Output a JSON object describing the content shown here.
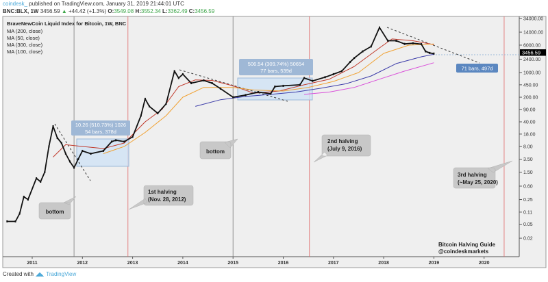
{
  "header": {
    "publisher": "coindesk_",
    "published_text": "published on TradingView.com, January 31, 2019 21:44:01 UTC",
    "symbol": "BNC:BLX, 1W",
    "last": "3456.59",
    "change": "+44.42 (+1.3%)",
    "o_label": "O:",
    "o": "3549.08",
    "h_label": "H:",
    "h": "3552.34",
    "l_label": "L:",
    "l": "3362.49",
    "c_label": "C:",
    "c": "3456.59",
    "up_color": "#3ea64a"
  },
  "legend": {
    "title": "BraveNewCoin Liquid Index for Bitcoin, 1W, BNC",
    "items": [
      "MA (200, close)",
      "MA (50, close)",
      "MA (300, close)",
      "MA (100, close)"
    ]
  },
  "annotations": {
    "measure1": {
      "line1": "10.26 (510.73%) 1026",
      "line2": "54 bars, 378d"
    },
    "measure2": {
      "line1": "506.54 (309.74%) 50654",
      "line2": "77 bars, 539d"
    },
    "measure3": {
      "line1": "71 bars, 497d"
    },
    "bottom1": "bottom",
    "bottom2": "bottom",
    "halving1": {
      "line1": "1st halving",
      "line2": "(Nov. 28, 2012)"
    },
    "halving2": {
      "line1": "2nd halving",
      "line2": "(July 9, 2016)"
    },
    "halving3": {
      "line1": "3rd halving",
      "line2": "(~May 25, 2020)"
    },
    "credit": {
      "line1": "Bitcoin Halving Guide",
      "line2": "@coindeskmarkets"
    }
  },
  "footer": {
    "created_with": "Created with",
    "brand": "TradingView"
  },
  "chart_data": {
    "type": "line",
    "title": "BraveNewCoin Liquid Index for Bitcoin, 1W, BNC",
    "y_scale": "log",
    "ylim": [
      0.01,
      34000
    ],
    "xlim": [
      "2010-07",
      "2020-08"
    ],
    "grid": false,
    "legend_position": "top-left",
    "last_price_label": "3456.59",
    "y_ticks": [
      "34000.00",
      "14000.00",
      "6000.00",
      "2400.00",
      "1000.00",
      "450.00",
      "200.00",
      "90.00",
      "40.00",
      "18.00",
      "8.00",
      "3.50",
      "1.50",
      "0.60",
      "0.25",
      "0.11",
      "0.05",
      "0.02"
    ],
    "x_ticks": [
      "2011",
      "2012",
      "2013",
      "2014",
      "2015",
      "2016",
      "2017",
      "2018",
      "2019",
      "2020"
    ],
    "vertical_lines": [
      {
        "date": "2011-11",
        "kind": "bottom",
        "color": "#787878"
      },
      {
        "date": "2012-11-28",
        "kind": "halving",
        "color": "#e06666"
      },
      {
        "date": "2015-01",
        "kind": "bottom",
        "color": "#787878"
      },
      {
        "date": "2016-07-09",
        "kind": "halving",
        "color": "#e06666"
      },
      {
        "date": "2020-05-25",
        "kind": "halving",
        "color": "#e06666"
      }
    ],
    "series": [
      {
        "name": "BraveNewCoin Liquid Index for Bitcoin",
        "color": "#111111",
        "points": [
          [
            "2010-07",
            0.06
          ],
          [
            "2010-09",
            0.06
          ],
          [
            "2010-10",
            0.1
          ],
          [
            "2010-11",
            0.3
          ],
          [
            "2010-12",
            0.25
          ],
          [
            "2011-02",
            1.0
          ],
          [
            "2011-03",
            0.8
          ],
          [
            "2011-04",
            1.5
          ],
          [
            "2011-05",
            8
          ],
          [
            "2011-06",
            30
          ],
          [
            "2011-07",
            14
          ],
          [
            "2011-08",
            10
          ],
          [
            "2011-09",
            5
          ],
          [
            "2011-10",
            3
          ],
          [
            "2011-11",
            2
          ],
          [
            "2011-12",
            3.5
          ],
          [
            "2012-01",
            6
          ],
          [
            "2012-03",
            5
          ],
          [
            "2012-06",
            6
          ],
          [
            "2012-08",
            11
          ],
          [
            "2012-09",
            12
          ],
          [
            "2012-11",
            11
          ],
          [
            "2013-01",
            15
          ],
          [
            "2013-03",
            60
          ],
          [
            "2013-04",
            180
          ],
          [
            "2013-05",
            110
          ],
          [
            "2013-07",
            70
          ],
          [
            "2013-09",
            130
          ],
          [
            "2013-11",
            1100
          ],
          [
            "2013-12",
            700
          ],
          [
            "2014-01",
            900
          ],
          [
            "2014-03",
            500
          ],
          [
            "2014-06",
            600
          ],
          [
            "2014-08",
            500
          ],
          [
            "2014-10",
            350
          ],
          [
            "2015-01",
            200
          ],
          [
            "2015-04",
            230
          ],
          [
            "2015-07",
            280
          ],
          [
            "2015-10",
            250
          ],
          [
            "2015-11",
            400
          ],
          [
            "2016-01",
            420
          ],
          [
            "2016-05",
            450
          ],
          [
            "2016-06",
            700
          ],
          [
            "2016-08",
            580
          ],
          [
            "2016-11",
            740
          ],
          [
            "2017-01",
            900
          ],
          [
            "2017-03",
            1100
          ],
          [
            "2017-05",
            2000
          ],
          [
            "2017-06",
            2600
          ],
          [
            "2017-08",
            4000
          ],
          [
            "2017-10",
            5500
          ],
          [
            "2017-12",
            19000
          ],
          [
            "2018-02",
            8000
          ],
          [
            "2018-04",
            8000
          ],
          [
            "2018-06",
            6500
          ],
          [
            "2018-08",
            6800
          ],
          [
            "2018-10",
            6400
          ],
          [
            "2018-11",
            4000
          ],
          [
            "2018-12",
            3600
          ],
          [
            "2019-01",
            3456.59
          ]
        ]
      },
      {
        "name": "MA (50, close)",
        "color": "#c0392b",
        "points": [
          [
            "2011-06",
            4
          ],
          [
            "2011-09",
            9
          ],
          [
            "2012-01",
            8
          ],
          [
            "2012-06",
            7
          ],
          [
            "2012-11",
            10
          ],
          [
            "2013-04",
            40
          ],
          [
            "2013-08",
            90
          ],
          [
            "2013-12",
            400
          ],
          [
            "2014-04",
            620
          ],
          [
            "2014-08",
            600
          ],
          [
            "2015-01",
            420
          ],
          [
            "2015-06",
            260
          ],
          [
            "2015-12",
            300
          ],
          [
            "2016-06",
            450
          ],
          [
            "2016-12",
            650
          ],
          [
            "2017-06",
            1500
          ],
          [
            "2017-12",
            5000
          ],
          [
            "2018-03",
            9000
          ],
          [
            "2018-08",
            8000
          ],
          [
            "2019-01",
            6200
          ]
        ]
      },
      {
        "name": "MA (100, close)",
        "color": "#f0a030",
        "points": [
          [
            "2012-06",
            5
          ],
          [
            "2012-11",
            8
          ],
          [
            "2013-04",
            20
          ],
          [
            "2013-09",
            60
          ],
          [
            "2014-01",
            200
          ],
          [
            "2014-06",
            380
          ],
          [
            "2015-01",
            380
          ],
          [
            "2015-06",
            320
          ],
          [
            "2016-01",
            300
          ],
          [
            "2016-07",
            380
          ],
          [
            "2017-01",
            560
          ],
          [
            "2017-07",
            1000
          ],
          [
            "2018-01",
            3500
          ],
          [
            "2018-07",
            6000
          ],
          [
            "2019-01",
            6500
          ]
        ]
      },
      {
        "name": "MA (200, close)",
        "color": "#3a3aa8",
        "points": [
          [
            "2014-04",
            110
          ],
          [
            "2014-10",
            170
          ],
          [
            "2015-04",
            210
          ],
          [
            "2015-10",
            240
          ],
          [
            "2016-04",
            280
          ],
          [
            "2016-10",
            360
          ],
          [
            "2017-04",
            480
          ],
          [
            "2017-10",
            800
          ],
          [
            "2018-04",
            1800
          ],
          [
            "2018-10",
            2800
          ],
          [
            "2019-01",
            3300
          ]
        ]
      },
      {
        "name": "MA (300, close)",
        "color": "#d94fd9",
        "points": [
          [
            "2016-06",
            240
          ],
          [
            "2016-12",
            280
          ],
          [
            "2017-06",
            380
          ],
          [
            "2017-12",
            650
          ],
          [
            "2018-06",
            1100
          ],
          [
            "2019-01",
            1900
          ]
        ]
      }
    ]
  }
}
